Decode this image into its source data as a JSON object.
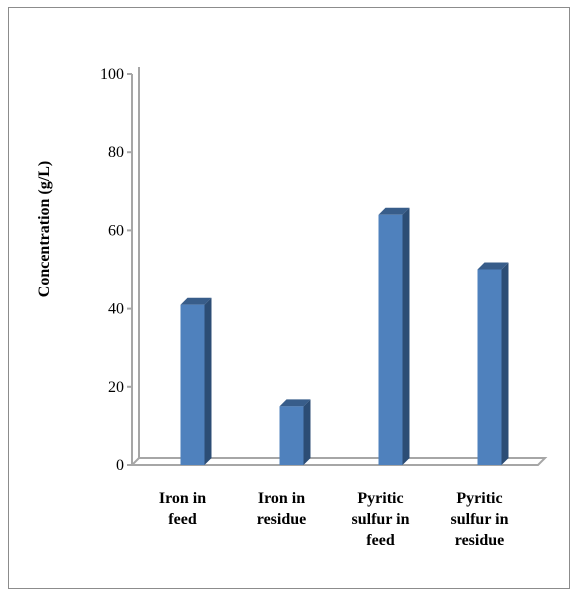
{
  "chart_data": {
    "type": "bar",
    "categories": [
      [
        "Iron in",
        "feed"
      ],
      [
        "Iron in",
        "residue"
      ],
      [
        "Pyritic",
        "sulfur in",
        "feed"
      ],
      [
        "Pyritic",
        "sulfur in",
        "residue"
      ]
    ],
    "values": [
      41,
      15,
      64,
      50
    ],
    "ylabel": "Concentration (g/L)",
    "ylim": [
      0,
      100
    ],
    "yticks": [
      0,
      20,
      40,
      60,
      80,
      100
    ],
    "grid": false,
    "legend": "none",
    "style": "3d-column",
    "colors": {
      "bar_front": "#4f81bd",
      "bar_side": "#2c4d75",
      "bar_top": "#385d8a",
      "axis": "#a6a6a6"
    }
  }
}
